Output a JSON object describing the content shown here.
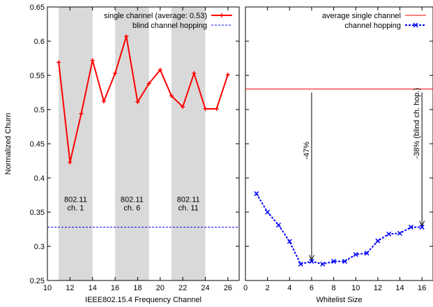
{
  "chart_data": [
    {
      "type": "line",
      "xlabel": "IEEE802.15.4 Frequency Channel",
      "ylabel": "Normalized Churn",
      "xlim": [
        10,
        27
      ],
      "ylim": [
        0.25,
        0.65
      ],
      "xticks": [
        10,
        12,
        14,
        16,
        18,
        20,
        22,
        24,
        26
      ],
      "yticks": [
        0.25,
        0.3,
        0.35,
        0.4,
        0.45,
        0.5,
        0.55,
        0.6,
        0.65
      ],
      "legend_position": "top-right",
      "shaded_bands": [
        {
          "x_start": 11,
          "x_end": 14,
          "label_line1": "802.11",
          "label_line2": "ch. 1",
          "label_x": 12.5,
          "label_y": 0.365
        },
        {
          "x_start": 16,
          "x_end": 19,
          "label_line1": "802.11",
          "label_line2": "ch. 6",
          "label_x": 17.5,
          "label_y": 0.365
        },
        {
          "x_start": 21,
          "x_end": 24,
          "label_line1": "802.11",
          "label_line2": "ch. 11",
          "label_x": 22.5,
          "label_y": 0.365
        }
      ],
      "series": [
        {
          "name": "single channel (average: 0.53)",
          "style": "solid-plus",
          "color": "#ff0000",
          "x": [
            11,
            12,
            13,
            14,
            15,
            16,
            17,
            18,
            19,
            20,
            21,
            22,
            23,
            24,
            25,
            26
          ],
          "y": [
            0.569,
            0.423,
            0.494,
            0.572,
            0.512,
            0.553,
            0.607,
            0.511,
            0.538,
            0.558,
            0.52,
            0.504,
            0.553,
            0.501,
            0.501,
            0.551
          ]
        },
        {
          "name": "blind channel hopping",
          "style": "dashed-line",
          "color": "#0000ff",
          "x": [
            10,
            27
          ],
          "y": [
            0.328,
            0.328
          ]
        }
      ]
    },
    {
      "type": "line",
      "xlabel": "Whitelist Size",
      "ylabel": "",
      "xlim": [
        0,
        17
      ],
      "ylim": [
        0.25,
        0.65
      ],
      "xticks": [
        0,
        2,
        4,
        6,
        8,
        10,
        12,
        14,
        16
      ],
      "legend_position": "top-right",
      "series": [
        {
          "name": "average single channel",
          "style": "solid-line",
          "color": "#ff0000",
          "x": [
            0,
            17
          ],
          "y": [
            0.53,
            0.53
          ]
        },
        {
          "name": "channel hopping",
          "style": "dashed-x",
          "color": "#0000ff",
          "x": [
            1,
            2,
            3,
            4,
            5,
            6,
            7,
            8,
            9,
            10,
            11,
            12,
            13,
            14,
            15,
            16
          ],
          "y": [
            0.377,
            0.35,
            0.331,
            0.307,
            0.274,
            0.278,
            0.274,
            0.278,
            0.278,
            0.288,
            0.29,
            0.308,
            0.318,
            0.319,
            0.328,
            0.328
          ]
        }
      ],
      "annotations": [
        {
          "text": "-47%",
          "x": 6,
          "y_from": 0.525,
          "y_to": 0.279,
          "text_y": 0.44
        },
        {
          "text": "-38% (blind ch. hop.)",
          "x": 16,
          "y_from": 0.525,
          "y_to": 0.329,
          "text_y": 0.48
        }
      ]
    }
  ]
}
